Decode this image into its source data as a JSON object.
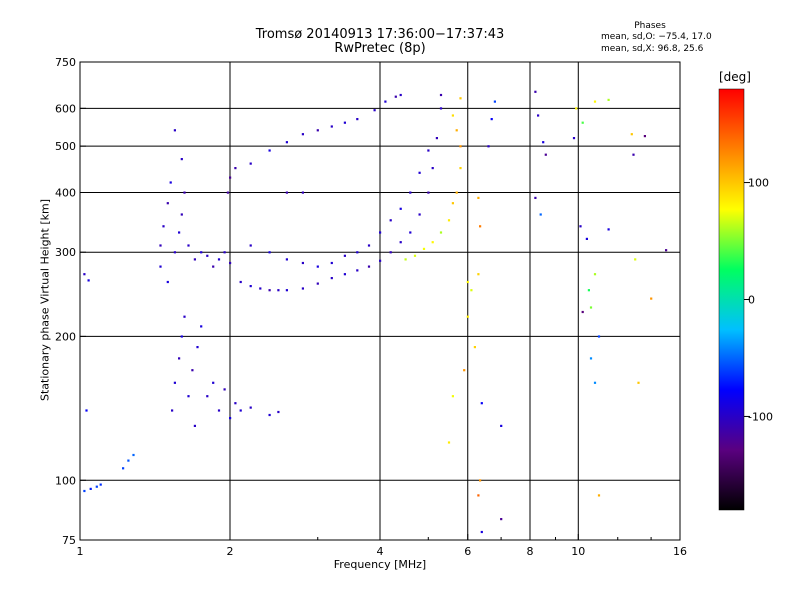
{
  "chart_data": {
    "type": "scatter",
    "title": "Tromsø 20140913 17:36:00−17:37:43",
    "subtitle": "RwPretec (8p)",
    "xlabel": "Frequency [MHz]",
    "ylabel": "Stationary phase Virtual Height [km]",
    "x_scale": "log",
    "y_scale": "log",
    "xlim": [
      1,
      16
    ],
    "ylim": [
      75,
      750
    ],
    "x_ticks": [
      1,
      2,
      4,
      6,
      8,
      10,
      16
    ],
    "y_ticks": [
      75,
      100,
      200,
      300,
      400,
      500,
      600,
      750
    ],
    "grid": true,
    "phases_box": {
      "title": "Phases",
      "o_stats": "mean, sd,O: −75.4, 17.0",
      "x_stats": "mean, sd,X:  96.8, 25.6"
    },
    "colorbar": {
      "label": "[deg]",
      "range": [
        -180,
        180
      ],
      "ticks": [
        100,
        0,
        -100
      ],
      "colormap": [
        "#000000",
        "#5a0080",
        "#0000ff",
        "#00c0ff",
        "#00ff60",
        "#ffff00",
        "#ff8000",
        "#ff0000"
      ]
    },
    "series": [
      {
        "values": [
          [
            1.02,
            270,
            -100
          ],
          [
            1.04,
            262,
            -90
          ],
          [
            1.03,
            140,
            -80
          ],
          [
            1.02,
            95,
            -60
          ],
          [
            1.05,
            96,
            -70
          ],
          [
            1.08,
            97,
            -60
          ],
          [
            1.1,
            98,
            -65
          ],
          [
            1.22,
            106,
            -60
          ],
          [
            1.25,
            110,
            -55
          ],
          [
            1.28,
            113,
            -50
          ],
          [
            1.45,
            310,
            -105
          ],
          [
            1.45,
            280,
            -95
          ],
          [
            1.47,
            340,
            -100
          ],
          [
            1.5,
            380,
            -110
          ],
          [
            1.52,
            420,
            -90
          ],
          [
            1.55,
            300,
            -100
          ],
          [
            1.58,
            330,
            -95
          ],
          [
            1.6,
            360,
            -105
          ],
          [
            1.62,
            400,
            -110
          ],
          [
            1.6,
            470,
            -100
          ],
          [
            1.55,
            540,
            -100
          ],
          [
            1.5,
            260,
            -90
          ],
          [
            1.53,
            140,
            -100
          ],
          [
            1.55,
            160,
            -95
          ],
          [
            1.58,
            180,
            -105
          ],
          [
            1.6,
            200,
            -90
          ],
          [
            1.62,
            220,
            -100
          ],
          [
            1.65,
            150,
            -95
          ],
          [
            1.68,
            170,
            -110
          ],
          [
            1.7,
            130,
            -100
          ],
          [
            1.72,
            190,
            -95
          ],
          [
            1.75,
            210,
            -90
          ],
          [
            1.65,
            310,
            -100
          ],
          [
            1.7,
            290,
            -105
          ],
          [
            1.75,
            300,
            -95
          ],
          [
            1.8,
            295,
            -100
          ],
          [
            1.85,
            280,
            -110
          ],
          [
            1.9,
            290,
            -95
          ],
          [
            1.95,
            300,
            -100
          ],
          [
            2.0,
            285,
            -105
          ],
          [
            1.8,
            150,
            -100
          ],
          [
            1.85,
            160,
            -95
          ],
          [
            1.9,
            140,
            -100
          ],
          [
            1.95,
            155,
            -105
          ],
          [
            2.0,
            135,
            -90
          ],
          [
            2.05,
            145,
            -100
          ],
          [
            2.1,
            140,
            -95
          ],
          [
            2.2,
            142,
            -100
          ],
          [
            2.4,
            137,
            -95
          ],
          [
            2.5,
            139,
            -100
          ],
          [
            2.0,
            430,
            -120
          ],
          [
            2.05,
            450,
            -110
          ],
          [
            1.98,
            400,
            -115
          ],
          [
            2.1,
            260,
            -100
          ],
          [
            2.2,
            255,
            -95
          ],
          [
            2.3,
            252,
            -100
          ],
          [
            2.4,
            250,
            -110
          ],
          [
            2.5,
            250,
            -100
          ],
          [
            2.6,
            250,
            -95
          ],
          [
            2.8,
            252,
            -100
          ],
          [
            3.0,
            258,
            -105
          ],
          [
            3.2,
            265,
            -100
          ],
          [
            3.4,
            270,
            -95
          ],
          [
            3.6,
            275,
            -100
          ],
          [
            3.8,
            280,
            -110
          ],
          [
            4.0,
            288,
            -100
          ],
          [
            4.2,
            300,
            -105
          ],
          [
            4.4,
            315,
            -100
          ],
          [
            4.6,
            330,
            -95
          ],
          [
            4.8,
            360,
            -100
          ],
          [
            5.0,
            400,
            -110
          ],
          [
            5.1,
            450,
            -100
          ],
          [
            5.2,
            520,
            -105
          ],
          [
            5.3,
            600,
            -100
          ],
          [
            5.3,
            640,
            -110
          ],
          [
            2.2,
            310,
            -100
          ],
          [
            2.4,
            300,
            -90
          ],
          [
            2.6,
            290,
            -95
          ],
          [
            2.8,
            285,
            -100
          ],
          [
            3.0,
            280,
            -90
          ],
          [
            3.2,
            285,
            -95
          ],
          [
            3.4,
            295,
            -100
          ],
          [
            3.6,
            300,
            -95
          ],
          [
            3.8,
            310,
            -100
          ],
          [
            4.0,
            330,
            -95
          ],
          [
            4.2,
            350,
            -100
          ],
          [
            4.4,
            370,
            -90
          ],
          [
            4.6,
            400,
            -100
          ],
          [
            4.8,
            440,
            -95
          ],
          [
            5.0,
            490,
            -100
          ],
          [
            2.6,
            400,
            -110
          ],
          [
            2.8,
            400,
            -105
          ],
          [
            2.2,
            460,
            -100
          ],
          [
            2.4,
            490,
            -90
          ],
          [
            2.6,
            510,
            -95
          ],
          [
            2.8,
            530,
            -100
          ],
          [
            3.0,
            540,
            -110
          ],
          [
            3.2,
            550,
            -100
          ],
          [
            3.4,
            560,
            -95
          ],
          [
            3.6,
            570,
            -100
          ],
          [
            3.9,
            595,
            -100
          ],
          [
            4.1,
            620,
            -95
          ],
          [
            4.3,
            635,
            -110
          ],
          [
            4.4,
            640,
            -100
          ],
          [
            4.5,
            290,
            65
          ],
          [
            4.7,
            295,
            70
          ],
          [
            4.9,
            305,
            75
          ],
          [
            5.1,
            315,
            80
          ],
          [
            5.3,
            330,
            60
          ],
          [
            5.5,
            350,
            85
          ],
          [
            5.6,
            380,
            100
          ],
          [
            5.7,
            400,
            110
          ],
          [
            5.8,
            450,
            95
          ],
          [
            5.8,
            500,
            120
          ],
          [
            5.7,
            540,
            110
          ],
          [
            5.6,
            580,
            90
          ],
          [
            5.8,
            630,
            100
          ],
          [
            6.0,
            260,
            80
          ],
          [
            6.0,
            220,
            85
          ],
          [
            6.2,
            190,
            95
          ],
          [
            6.1,
            250,
            70
          ],
          [
            5.6,
            150,
            75
          ],
          [
            5.5,
            120,
            85
          ],
          [
            5.9,
            170,
            120
          ],
          [
            6.3,
            390,
            110
          ],
          [
            6.35,
            340,
            130
          ],
          [
            6.3,
            270,
            95
          ],
          [
            6.35,
            100,
            120
          ],
          [
            6.3,
            93,
            140
          ],
          [
            6.4,
            78,
            -90
          ],
          [
            6.4,
            145,
            -80
          ],
          [
            6.6,
            500,
            -100
          ],
          [
            6.7,
            570,
            -80
          ],
          [
            6.8,
            620,
            -60
          ],
          [
            7.0,
            83,
            -120
          ],
          [
            7.0,
            130,
            -90
          ],
          [
            8.2,
            650,
            -110
          ],
          [
            8.3,
            580,
            -100
          ],
          [
            8.5,
            510,
            -90
          ],
          [
            8.4,
            360,
            -50
          ],
          [
            8.6,
            480,
            -120
          ],
          [
            8.2,
            390,
            -110
          ],
          [
            9.9,
            600,
            80
          ],
          [
            9.8,
            520,
            -100
          ],
          [
            10.2,
            560,
            40
          ],
          [
            10.1,
            340,
            -100
          ],
          [
            10.4,
            320,
            -90
          ],
          [
            10.6,
            180,
            -40
          ],
          [
            10.8,
            160,
            -40
          ],
          [
            10.8,
            620,
            80
          ],
          [
            10.2,
            225,
            -130
          ],
          [
            10.5,
            250,
            30
          ],
          [
            10.6,
            230,
            50
          ],
          [
            10.8,
            270,
            60
          ],
          [
            11.0,
            200,
            -60
          ],
          [
            11.5,
            335,
            -90
          ],
          [
            11.0,
            93,
            110
          ],
          [
            11.5,
            625,
            60
          ],
          [
            12.8,
            530,
            100
          ],
          [
            12.9,
            480,
            -110
          ],
          [
            13.0,
            290,
            70
          ],
          [
            13.2,
            160,
            100
          ],
          [
            13.6,
            525,
            -130
          ],
          [
            14.0,
            240,
            120
          ],
          [
            15.0,
            303,
            -120
          ]
        ]
      }
    ]
  }
}
